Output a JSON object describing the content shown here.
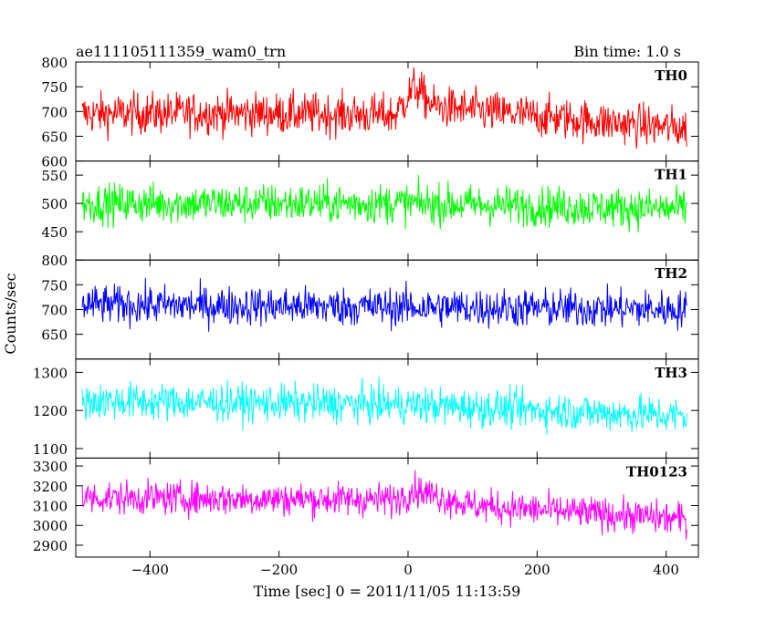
{
  "header": {
    "filename": "ae111105111359_wam0_trn",
    "bin_time": "Bin time: 1.0 s"
  },
  "axes": {
    "xlabel": "Time [sec] 0 = 2011/11/05 11:13:59",
    "ylabel": "Counts/sec"
  },
  "chart_data": {
    "type": "line",
    "title": "ae111105111359_wam0_trn",
    "subtitle": "Bin time: 1.0 s",
    "xlabel": "Time [sec] 0 = 2011/11/05 11:13:59",
    "ylabel": "Counts/sec",
    "xlim": [
      -515,
      450
    ],
    "x_ticks": [
      -400,
      -200,
      0,
      200,
      400
    ],
    "x_tick_labels": [
      "−400",
      "−200",
      "0",
      "200",
      "400"
    ],
    "x_range": [
      -505,
      432
    ],
    "grid": false,
    "legend": "none",
    "series": [
      {
        "name": "TH0",
        "color": "#ff0000",
        "ylim": [
          600,
          800
        ],
        "y_ticks": [
          600,
          650,
          700,
          750,
          800
        ],
        "y_tick_labels": [
          "600",
          "650",
          "700",
          "750",
          "800"
        ],
        "trend": [
          [
            -505,
            695
          ],
          [
            -300,
            697
          ],
          [
            -20,
            693
          ],
          [
            10,
            750
          ],
          [
            40,
            710
          ],
          [
            200,
            690
          ],
          [
            432,
            665
          ]
        ],
        "noise": 30
      },
      {
        "name": "TH1",
        "color": "#00ff00",
        "ylim": [
          400,
          575
        ],
        "y_ticks": [
          450,
          500,
          550
        ],
        "y_tick_labels": [
          "450",
          "500",
          "550"
        ],
        "trend": [
          [
            -505,
            500
          ],
          [
            0,
            500
          ],
          [
            432,
            490
          ]
        ],
        "noise": 25
      },
      {
        "name": "TH2",
        "color": "#0000ff",
        "ylim": [
          600,
          800
        ],
        "y_ticks": [
          650,
          700,
          750,
          800
        ],
        "y_tick_labels": [
          "650",
          "700",
          "750",
          "800"
        ],
        "trend": [
          [
            -505,
            710
          ],
          [
            0,
            705
          ],
          [
            432,
            700
          ]
        ],
        "noise": 28
      },
      {
        "name": "TH3",
        "color": "#00ffff",
        "ylim": [
          1075,
          1335
        ],
        "y_ticks": [
          1100,
          1200,
          1300
        ],
        "y_tick_labels": [
          "1100",
          "1200",
          "1300"
        ],
        "trend": [
          [
            -505,
            1225
          ],
          [
            0,
            1215
          ],
          [
            432,
            1185
          ]
        ],
        "noise": 35
      },
      {
        "name": "TH0123",
        "color": "#ff00ff",
        "ylim": [
          2840,
          3340
        ],
        "y_ticks": [
          2900,
          3000,
          3100,
          3200,
          3300
        ],
        "y_tick_labels": [
          "2900",
          "3000",
          "3100",
          "3200",
          "3300"
        ],
        "trend": [
          [
            -505,
            3140
          ],
          [
            -20,
            3130
          ],
          [
            10,
            3180
          ],
          [
            100,
            3100
          ],
          [
            432,
            3030
          ]
        ],
        "noise": 60
      }
    ]
  }
}
